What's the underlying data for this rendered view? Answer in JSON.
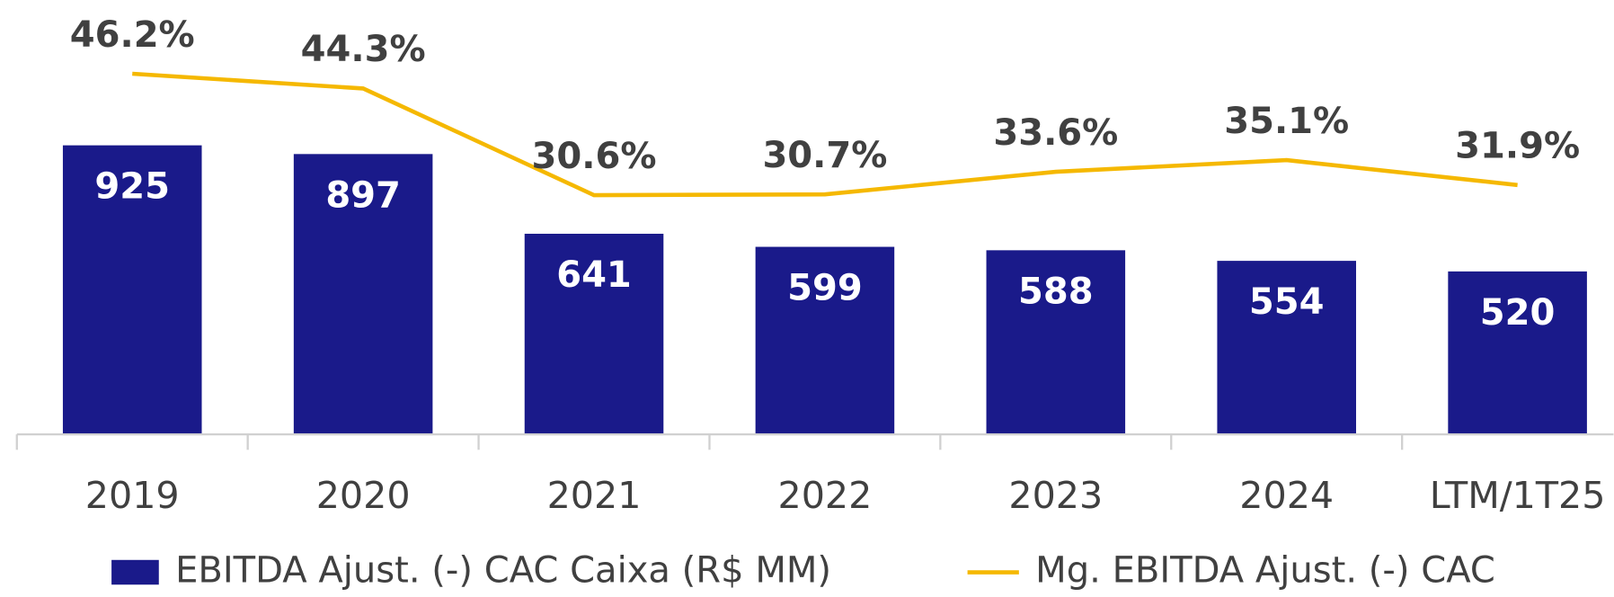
{
  "chart_data": {
    "type": "bar-line",
    "categories": [
      "2019",
      "2020",
      "2021",
      "2022",
      "2023",
      "2024",
      "LTM/1T25"
    ],
    "series": [
      {
        "name": "EBITDA Ajust. (-) CAC Caixa (R$ MM)",
        "type": "bar",
        "color": "#1a1a8a",
        "values": [
          925,
          897,
          641,
          599,
          588,
          554,
          520
        ]
      },
      {
        "name": "Mg. EBITDA Ajust. (-) CAC",
        "type": "line",
        "axis": "y2",
        "color": "#f5b800",
        "values": [
          46.2,
          44.3,
          30.6,
          30.7,
          33.6,
          35.1,
          31.9
        ],
        "value_labels": [
          "46.2%",
          "44.3%",
          "30.6%",
          "30.7%",
          "33.6%",
          "35.1%",
          "31.9%"
        ]
      }
    ],
    "ylim": [
      0,
      1200
    ],
    "y2lim": [
      0,
      48
    ],
    "legend": "bottom"
  }
}
